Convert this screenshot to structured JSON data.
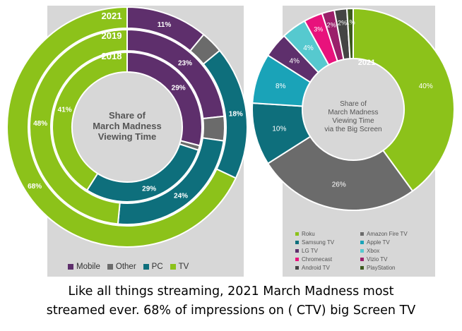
{
  "chart_data": [
    {
      "type": "pie",
      "subtype": "nested-donut",
      "title": "Share of March Madness Viewing Time",
      "title_lines": [
        "Share of",
        "March Madness",
        "Viewing Time"
      ],
      "categories": [
        "Mobile",
        "Other",
        "PC",
        "TV"
      ],
      "colors": {
        "Mobile": "#5e2f6c",
        "Other": "#6b6b6b",
        "PC": "#0e6f7c",
        "TV": "#8cc21a"
      },
      "series": [
        {
          "name": "2021",
          "values": [
            11,
            3,
            18,
            68
          ],
          "labels": [
            "11%",
            "",
            "18%",
            "68%"
          ]
        },
        {
          "name": "2019",
          "values": [
            23,
            4,
            24,
            48
          ],
          "labels": [
            "23%",
            "",
            "24%",
            "48%"
          ]
        },
        {
          "name": "2018",
          "values": [
            29,
            1,
            29,
            41
          ],
          "labels": [
            "29%",
            "",
            "29%",
            "41%"
          ]
        }
      ],
      "legend": [
        "Mobile",
        "Other",
        "PC",
        "TV"
      ]
    },
    {
      "type": "pie",
      "subtype": "donut",
      "title": "Share of March Madness Viewing Time via the Big Screen",
      "title_lines": [
        "Share of",
        "March Madness",
        "Viewing Time",
        "via the Big Screen"
      ],
      "year_label": "2021",
      "slices": [
        {
          "name": "Roku",
          "value": 40,
          "label": "40%",
          "color": "#8cc21a"
        },
        {
          "name": "Amazon Fire TV",
          "value": 26,
          "label": "26%",
          "color": "#6b6b6b"
        },
        {
          "name": "Samsung TV",
          "value": 10,
          "label": "10%",
          "color": "#0e6f7c"
        },
        {
          "name": "Apple TV",
          "value": 8,
          "label": "8%",
          "color": "#1aa3b8"
        },
        {
          "name": "LG TV",
          "value": 4,
          "label": "4%",
          "color": "#5e2f6c"
        },
        {
          "name": "Xbox",
          "value": 4,
          "label": "4%",
          "color": "#56c9cf"
        },
        {
          "name": "Chromecast",
          "value": 3,
          "label": "3%",
          "color": "#e8127c"
        },
        {
          "name": "Vizio TV",
          "value": 2,
          "label": "2%",
          "color": "#9a1f6a"
        },
        {
          "name": "Android TV",
          "value": 2,
          "label": "2%",
          "color": "#444444"
        },
        {
          "name": "PlayStation",
          "value": 1,
          "label": "1%",
          "color": "#3d5a1e"
        }
      ],
      "legend": [
        {
          "name": "Roku",
          "color": "#8cc21a"
        },
        {
          "name": "Amazon Fire TV",
          "color": "#6b6b6b"
        },
        {
          "name": "Samsung TV",
          "color": "#0e6f7c"
        },
        {
          "name": "Apple TV",
          "color": "#1aa3b8"
        },
        {
          "name": "LG TV",
          "color": "#5e2f6c"
        },
        {
          "name": "Xbox",
          "color": "#56c9cf"
        },
        {
          "name": "Chromecast",
          "color": "#e8127c"
        },
        {
          "name": "Vizio TV",
          "color": "#9a1f6a"
        },
        {
          "name": "Android TV",
          "color": "#444444"
        },
        {
          "name": "PlayStation",
          "color": "#3d5a1e"
        }
      ]
    }
  ],
  "caption": {
    "line1": "Like all things streaming, 2021 March Madness most",
    "line2": "streamed ever. 68% of impressions on ( CTV) big Screen TV"
  }
}
